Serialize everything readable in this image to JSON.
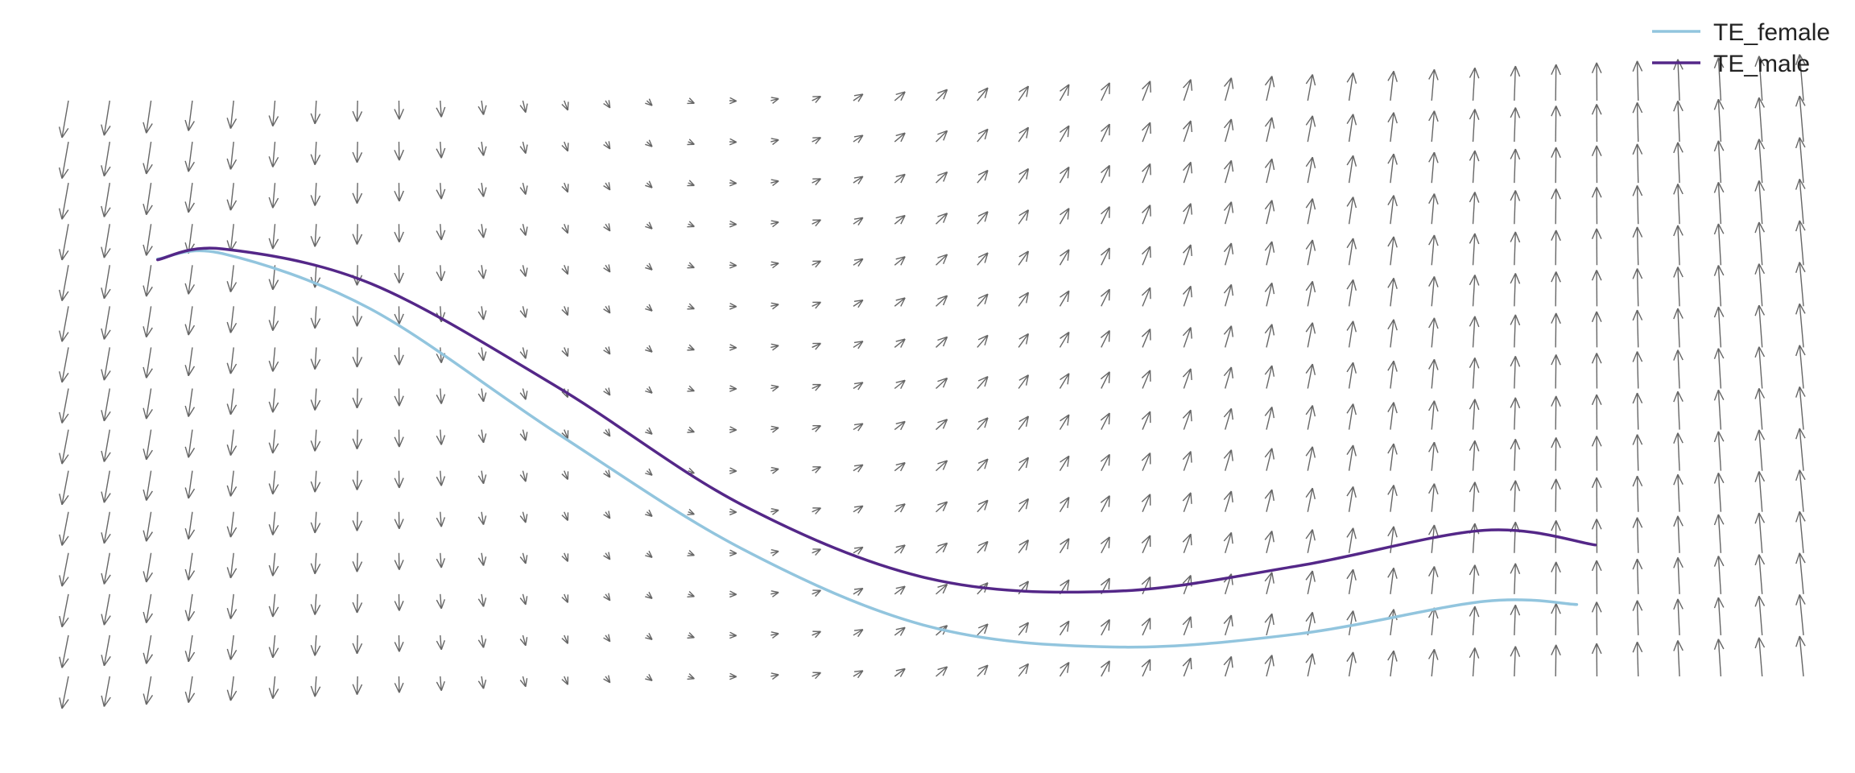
{
  "chart_data": {
    "type": "line",
    "overlay": "vector-field",
    "grid": false,
    "axes_visible": false,
    "legend_position": "top-right",
    "xlim": [
      0,
      1
    ],
    "ylim": [
      0,
      1
    ],
    "series": [
      {
        "name": "TE_female",
        "color": "#92c5de",
        "points": [
          [
            0.085,
            0.665
          ],
          [
            0.12,
            0.672
          ],
          [
            0.2,
            0.6
          ],
          [
            0.3,
            0.44
          ],
          [
            0.4,
            0.29
          ],
          [
            0.5,
            0.19
          ],
          [
            0.6,
            0.163
          ],
          [
            0.7,
            0.18
          ],
          [
            0.8,
            0.222
          ],
          [
            0.85,
            0.218
          ]
        ]
      },
      {
        "name": "TE_male",
        "color": "#542788",
        "points": [
          [
            0.085,
            0.664
          ],
          [
            0.12,
            0.678
          ],
          [
            0.2,
            0.633
          ],
          [
            0.3,
            0.5
          ],
          [
            0.4,
            0.347
          ],
          [
            0.5,
            0.252
          ],
          [
            0.6,
            0.235
          ],
          [
            0.7,
            0.268
          ],
          [
            0.8,
            0.314
          ],
          [
            0.86,
            0.295
          ]
        ]
      }
    ],
    "field": {
      "color": "#666666",
      "cols": 43,
      "rows": 15,
      "u": [
        -0.2,
        0.35,
        -0.12
      ],
      "v": [
        -1.0,
        0.3,
        1.25
      ]
    }
  }
}
